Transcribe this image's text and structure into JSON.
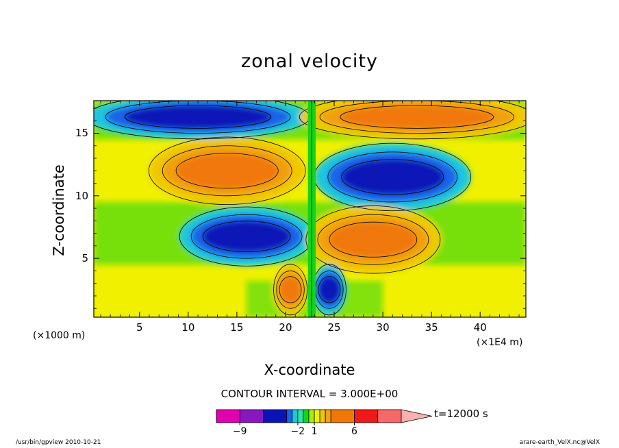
{
  "chart_data": {
    "type": "heatmap",
    "title": "zonal velocity",
    "xlabel": "X-coordinate",
    "ylabel": "Z-coordinate",
    "x_unit": "(×1000 m)",
    "x_unit2": "(×1E4 m)",
    "xlim": [
      0.3,
      44.7
    ],
    "ylim": [
      0.3,
      17.6
    ],
    "x_ticks": [
      5,
      10,
      15,
      20,
      25,
      30,
      35,
      40
    ],
    "y_ticks": [
      5,
      10,
      15
    ],
    "contour_interval": "CONTOUR INTERVAL = 3.000E+00",
    "time_label": "t=12000 s",
    "colorbar": {
      "labels": [
        {
          "value": -9,
          "text": "−9"
        },
        {
          "value": -2,
          "text": "−2"
        },
        {
          "value": 1,
          "text": "1"
        },
        {
          "value": 6,
          "text": "6"
        }
      ],
      "colors": [
        "#e000b0",
        "#8a16c0",
        "#0b13b6",
        "#1a63e8",
        "#1cc6e0",
        "#28e8a8",
        "#12d41a",
        "#a8f000",
        "#f0f000",
        "#f0c800",
        "#f0a010",
        "#f07808",
        "#f01818",
        "#f86868",
        "#f8b0b0"
      ]
    },
    "regions": [
      {
        "name": "upper-left-orange",
        "x": [
          7,
          21
        ],
        "z": [
          10,
          14
        ],
        "value": 6
      },
      {
        "name": "upper-right-blue",
        "x": [
          24,
          38
        ],
        "z": [
          9.5,
          13.5
        ],
        "value": -6
      },
      {
        "name": "mid-left-blue",
        "x": [
          10,
          22
        ],
        "z": [
          5,
          8.5
        ],
        "value": -6
      },
      {
        "name": "mid-right-orange",
        "x": [
          23,
          35
        ],
        "z": [
          4.5,
          8.5
        ],
        "value": 6
      },
      {
        "name": "low-left-orange",
        "x": [
          19,
          22
        ],
        "z": [
          1,
          4
        ],
        "value": 6
      },
      {
        "name": "low-right-blue",
        "x": [
          23,
          26
        ],
        "z": [
          1,
          4
        ],
        "value": -6
      },
      {
        "name": "top-left-blue",
        "x": [
          1,
          21
        ],
        "z": [
          15,
          17.6
        ],
        "value": -6
      },
      {
        "name": "top-right-orange",
        "x": [
          23,
          44
        ],
        "z": [
          15,
          17.6
        ],
        "value": 6
      }
    ]
  },
  "footer": {
    "left": "/usr/bin/gpview  2010-10-21",
    "right": "arare-earth_VelX.nc@VelX"
  }
}
